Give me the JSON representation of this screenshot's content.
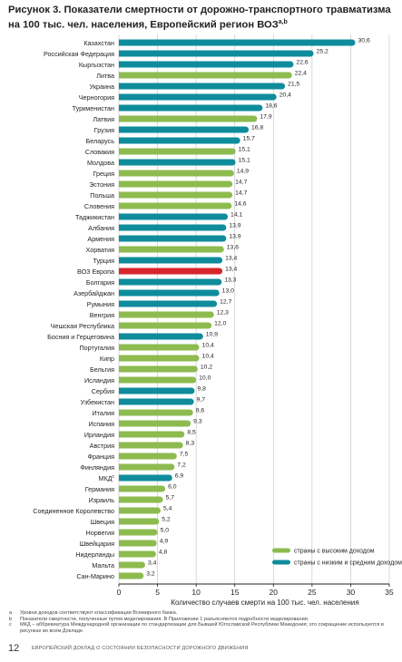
{
  "figure": {
    "title_line1": "Рисунок 3. Показатели смертности от дорожно-транспортного травматизма",
    "title_line2": "на 100 тыс. чел. населения, Европейский регион ВОЗ",
    "title_sup": "a,b"
  },
  "chart_data": {
    "type": "bar",
    "orientation": "horizontal",
    "xlabel": "Количество случаев смерти на 100 тыс. чел. населения",
    "xlim": [
      0,
      35
    ],
    "xticks": [
      0,
      5,
      10,
      15,
      20,
      25,
      30,
      35
    ],
    "grid": true,
    "legend_position": "bottom-right",
    "legend": [
      {
        "key": "high",
        "label": "страны с высоким доходом",
        "color": "#8dbb4f"
      },
      {
        "key": "lmi",
        "label": "страны с низким и средним доходом",
        "color": "#0e8c9c"
      }
    ],
    "highlight_color": "#d7262b",
    "categories": [
      "Казахстан",
      "Российская Федерация",
      "Кыргызстан",
      "Литва",
      "Украина",
      "Черногория",
      "Туркменистан",
      "Латвия",
      "Грузия",
      "Беларусь",
      "Словакия",
      "Молдова",
      "Греция",
      "Эстония",
      "Польша",
      "Словения",
      "Таджикистан",
      "Албания",
      "Армения",
      "Хорватия",
      "Турция",
      "ВОЗ Европа",
      "Болгария",
      "Азербайджан",
      "Румыния",
      "Венгрия",
      "Чешская Республика",
      "Босния и Герцеговина",
      "Португалия",
      "Кипр",
      "Бельгия",
      "Исландия",
      "Сербия",
      "Узбекистан",
      "Италия",
      "Испания",
      "Ирландия",
      "Австрия",
      "Франция",
      "Финляндия",
      "МКД",
      "Германия",
      "Израиль",
      "Соединенное Королевство",
      "Швеция",
      "Норвегия",
      "Швейцария",
      "Нидерланды",
      "Мальта",
      "Сан-Марино"
    ],
    "category_sup": {
      "МКД": "c"
    },
    "values": [
      30.6,
      25.2,
      22.6,
      22.4,
      21.5,
      20.4,
      18.6,
      17.9,
      16.8,
      15.7,
      15.1,
      15.1,
      14.9,
      14.7,
      14.7,
      14.6,
      14.1,
      13.9,
      13.9,
      13.6,
      13.4,
      13.4,
      13.3,
      13.0,
      12.7,
      12.3,
      12.0,
      10.9,
      10.4,
      10.4,
      10.2,
      10.0,
      9.8,
      9.7,
      9.6,
      9.3,
      8.5,
      8.3,
      7.5,
      7.2,
      6.9,
      6.0,
      5.7,
      5.4,
      5.2,
      5.0,
      4.9,
      4.8,
      3.4,
      3.2
    ],
    "value_labels": [
      "30,6",
      "25,2",
      "22,6",
      "22,4",
      "21,5",
      "20,4",
      "18,6",
      "17,9",
      "16,8",
      "15,7",
      "15,1",
      "15,1",
      "14,9",
      "14,7",
      "14,7",
      "14,6",
      "14,1",
      "13,9",
      "13,9",
      "13,6",
      "13,4",
      "13,4",
      "13,3",
      "13,0",
      "12,7",
      "12,3",
      "12,0",
      "10,9",
      "10,4",
      "10,4",
      "10,2",
      "10,0",
      "9,8",
      "9,7",
      "9,6",
      "9,3",
      "8,5",
      "8,3",
      "7,5",
      "7,2",
      "6,9",
      "6,0",
      "5,7",
      "5,4",
      "5,2",
      "5,0",
      "4,9",
      "4,8",
      "3,4",
      "3,2"
    ],
    "groups": [
      "lmi",
      "lmi",
      "lmi",
      "high",
      "lmi",
      "lmi",
      "lmi",
      "high",
      "lmi",
      "lmi",
      "high",
      "lmi",
      "high",
      "high",
      "high",
      "high",
      "lmi",
      "lmi",
      "lmi",
      "high",
      "lmi",
      "region",
      "lmi",
      "lmi",
      "lmi",
      "high",
      "high",
      "lmi",
      "high",
      "high",
      "high",
      "high",
      "lmi",
      "lmi",
      "high",
      "high",
      "high",
      "high",
      "high",
      "high",
      "lmi",
      "high",
      "high",
      "high",
      "high",
      "high",
      "high",
      "high",
      "high",
      "high"
    ]
  },
  "notes": [
    {
      "mark": "a",
      "text": "Уровни доходов соответствуют классификации Всемирного банка."
    },
    {
      "mark": "b",
      "text": "Показатели смертности, полученные путем моделирования. В Приложении 1 разъясняются подробности моделирования."
    },
    {
      "mark": "c",
      "text": "МКД – аббревиатура Международной организации по стандартизации для Бывшей Югославской Республики Македония; это сокращение используется в рисунках во всем Докладе."
    }
  ],
  "footer": {
    "page_number": "12",
    "text": "ЕВРОПЕЙСКИЙ ДОКЛАД О СОСТОЯНИИ БЕЗОПАСНОСТИ ДОРОЖНОГО ДВИЖЕНИЯ"
  }
}
